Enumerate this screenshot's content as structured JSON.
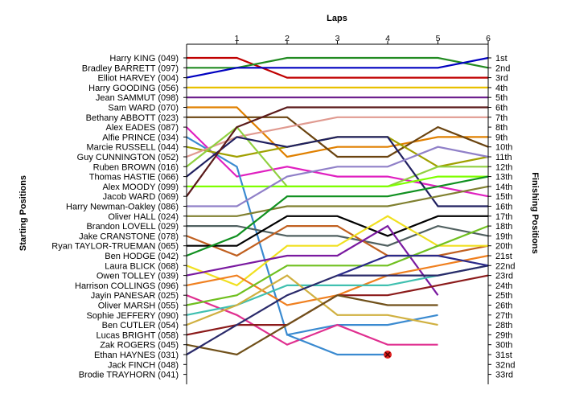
{
  "chart_data": {
    "type": "line",
    "title": "Laps",
    "xlabel": "Laps",
    "ylabel": "Starting Positions",
    "y2label": "Finishing Positions",
    "x_ticks": [
      "1",
      "2",
      "3",
      "4",
      "5",
      "6"
    ],
    "xlim": [
      0,
      6
    ],
    "ylim": [
      1,
      33
    ],
    "y_inverted": true,
    "grid": false,
    "legend": "none",
    "starting_labels": [
      "Harry KING (049)",
      "Bradley BARRETT (097)",
      "Elliot HARVEY (004)",
      "Harry GOODING (056)",
      "Jean SAMMUT (098)",
      "Sam WARD (070)",
      "Bethany ABBOTT (023)",
      "Alex EADES (087)",
      "Alfie PRINCE (034)",
      "Marcie RUSSELL (044)",
      "Guy CUNNINGTON (052)",
      "Ruben BROWN (016)",
      "Thomas HASTIE (066)",
      "Alex MOODY (099)",
      "Jacob WARD (069)",
      "Harry Newman-Oakley (086)",
      "Oliver HALL (024)",
      "Brandon LOVELL (029)",
      "Jake CRANSTONE (078)",
      "Ryan TAYLOR-TRUEMAN (065)",
      "Ben HODGE (042)",
      "Laura BLICK (068)",
      "Owen TOLLEY (039)",
      "Harrison COLLINGS (096)",
      "Jayin PANESAR (025)",
      "Oliver MARSH (055)",
      "Sophie JEFFERY (090)",
      "Ben CUTLER (054)",
      "Lucas BRIGHT (058)",
      "Zak ROGERS (045)",
      "Ethan HAYNES (031)",
      "Jack FINCH (048)",
      "Brodie TRAYHORN (041)"
    ],
    "finishing_labels": [
      "1st",
      "2nd",
      "3rd",
      "4th",
      "5th",
      "6th",
      "7th",
      "8th",
      "9th",
      "10th",
      "11th",
      "12th",
      "13th",
      "14th",
      "15th",
      "16th",
      "17th",
      "18th",
      "19th",
      "20th",
      "21st",
      "22nd",
      "23rd",
      "24th",
      "25th",
      "26th",
      "27th",
      "28th",
      "29th",
      "30th",
      "31st",
      "32nd",
      "33rd"
    ],
    "series": [
      {
        "color": "#c00000",
        "values": [
          1,
          1,
          3,
          3,
          3,
          3,
          3
        ]
      },
      {
        "color": "#228b22",
        "values": [
          2,
          2,
          1,
          1,
          1,
          1,
          2
        ]
      },
      {
        "color": "#0000c0",
        "values": [
          3,
          2,
          2,
          2,
          2,
          2,
          1
        ]
      },
      {
        "color": "#e8c000",
        "values": [
          4,
          4,
          4,
          4,
          4,
          4,
          4
        ]
      },
      {
        "color": "#6a1a8a",
        "values": [
          5,
          5,
          5,
          5,
          5,
          5,
          5
        ]
      },
      {
        "color": "#e08000",
        "values": [
          6,
          6,
          11,
          10,
          10,
          9,
          9
        ]
      },
      {
        "color": "#6b4410",
        "values": [
          7,
          7,
          7,
          11,
          11,
          8,
          10
        ]
      },
      {
        "color": "#e020c0",
        "values": [
          8,
          13,
          12,
          13,
          13,
          14,
          15
        ]
      },
      {
        "color": "#3a8ad0",
        "values": [
          9,
          12,
          29,
          28,
          28,
          27
        ]
      },
      {
        "color": "#a0a000",
        "values": [
          10,
          11,
          10,
          9,
          9,
          12,
          11
        ]
      },
      {
        "color": "#e09a90",
        "values": [
          11,
          9,
          8,
          7,
          7,
          7,
          7
        ]
      },
      {
        "color": "#90d040",
        "values": [
          12,
          8,
          14,
          14,
          14,
          12,
          12
        ]
      },
      {
        "color": "#202060",
        "values": [
          13,
          9,
          10,
          9,
          9,
          16,
          16
        ]
      },
      {
        "color": "#7fff00",
        "values": [
          14,
          14,
          14,
          14,
          14,
          13,
          13
        ]
      },
      {
        "color": "#5a1a1a",
        "values": [
          15,
          8,
          6,
          6,
          6,
          6,
          6
        ]
      },
      {
        "color": "#9080c8",
        "values": [
          16,
          16,
          13,
          12,
          12,
          10,
          11
        ]
      },
      {
        "color": "#808030",
        "values": [
          17,
          17,
          16,
          16,
          16,
          15,
          14
        ]
      },
      {
        "color": "#506060",
        "values": [
          18,
          18,
          19,
          19,
          20,
          18,
          19
        ]
      },
      {
        "color": "#c06020",
        "values": [
          19,
          21,
          18,
          18,
          21,
          21,
          20
        ]
      },
      {
        "color": "#000000",
        "values": [
          20,
          20,
          17,
          17,
          19,
          17,
          17
        ]
      },
      {
        "color": "#109020",
        "values": [
          21,
          19,
          15,
          15,
          15,
          14,
          13
        ]
      },
      {
        "color": "#f0e020",
        "values": [
          22,
          24,
          20,
          20,
          17,
          20,
          20
        ]
      },
      {
        "color": "#7a1aa0",
        "values": [
          23,
          22,
          21,
          21,
          18,
          25
        ]
      },
      {
        "color": "#f08020",
        "values": [
          24,
          23,
          26,
          25,
          23,
          22,
          21
        ]
      },
      {
        "color": "#e03090",
        "values": [
          25,
          27,
          30,
          28,
          30,
          30
        ]
      },
      {
        "color": "#70c020",
        "values": [
          26,
          25,
          22,
          22,
          22,
          20,
          18
        ]
      },
      {
        "color": "#40c0b0",
        "values": [
          27,
          26,
          24,
          24,
          24,
          23,
          22
        ]
      },
      {
        "color": "#d0b040",
        "values": [
          28,
          26,
          23,
          27,
          27,
          28
        ]
      },
      {
        "color": "#8b1a1a",
        "values": [
          29,
          28,
          28,
          25,
          25,
          24,
          23
        ]
      },
      {
        "color": "#70501a",
        "values": [
          30,
          31,
          28,
          25,
          26,
          26
        ]
      },
      {
        "color": "#2a2a6a",
        "values": [
          31,
          28,
          25,
          23,
          23,
          23,
          22
        ]
      },
      {
        "color": "#3a8ad0",
        "values": [
          29,
          31,
          31
        ],
        "x_start": 2
      },
      {
        "color": "#2a2a8a",
        "values": [
          23,
          21,
          21,
          22
        ],
        "x_start": 3
      }
    ],
    "retired_marker": {
      "x": 4,
      "y": 31
    }
  }
}
